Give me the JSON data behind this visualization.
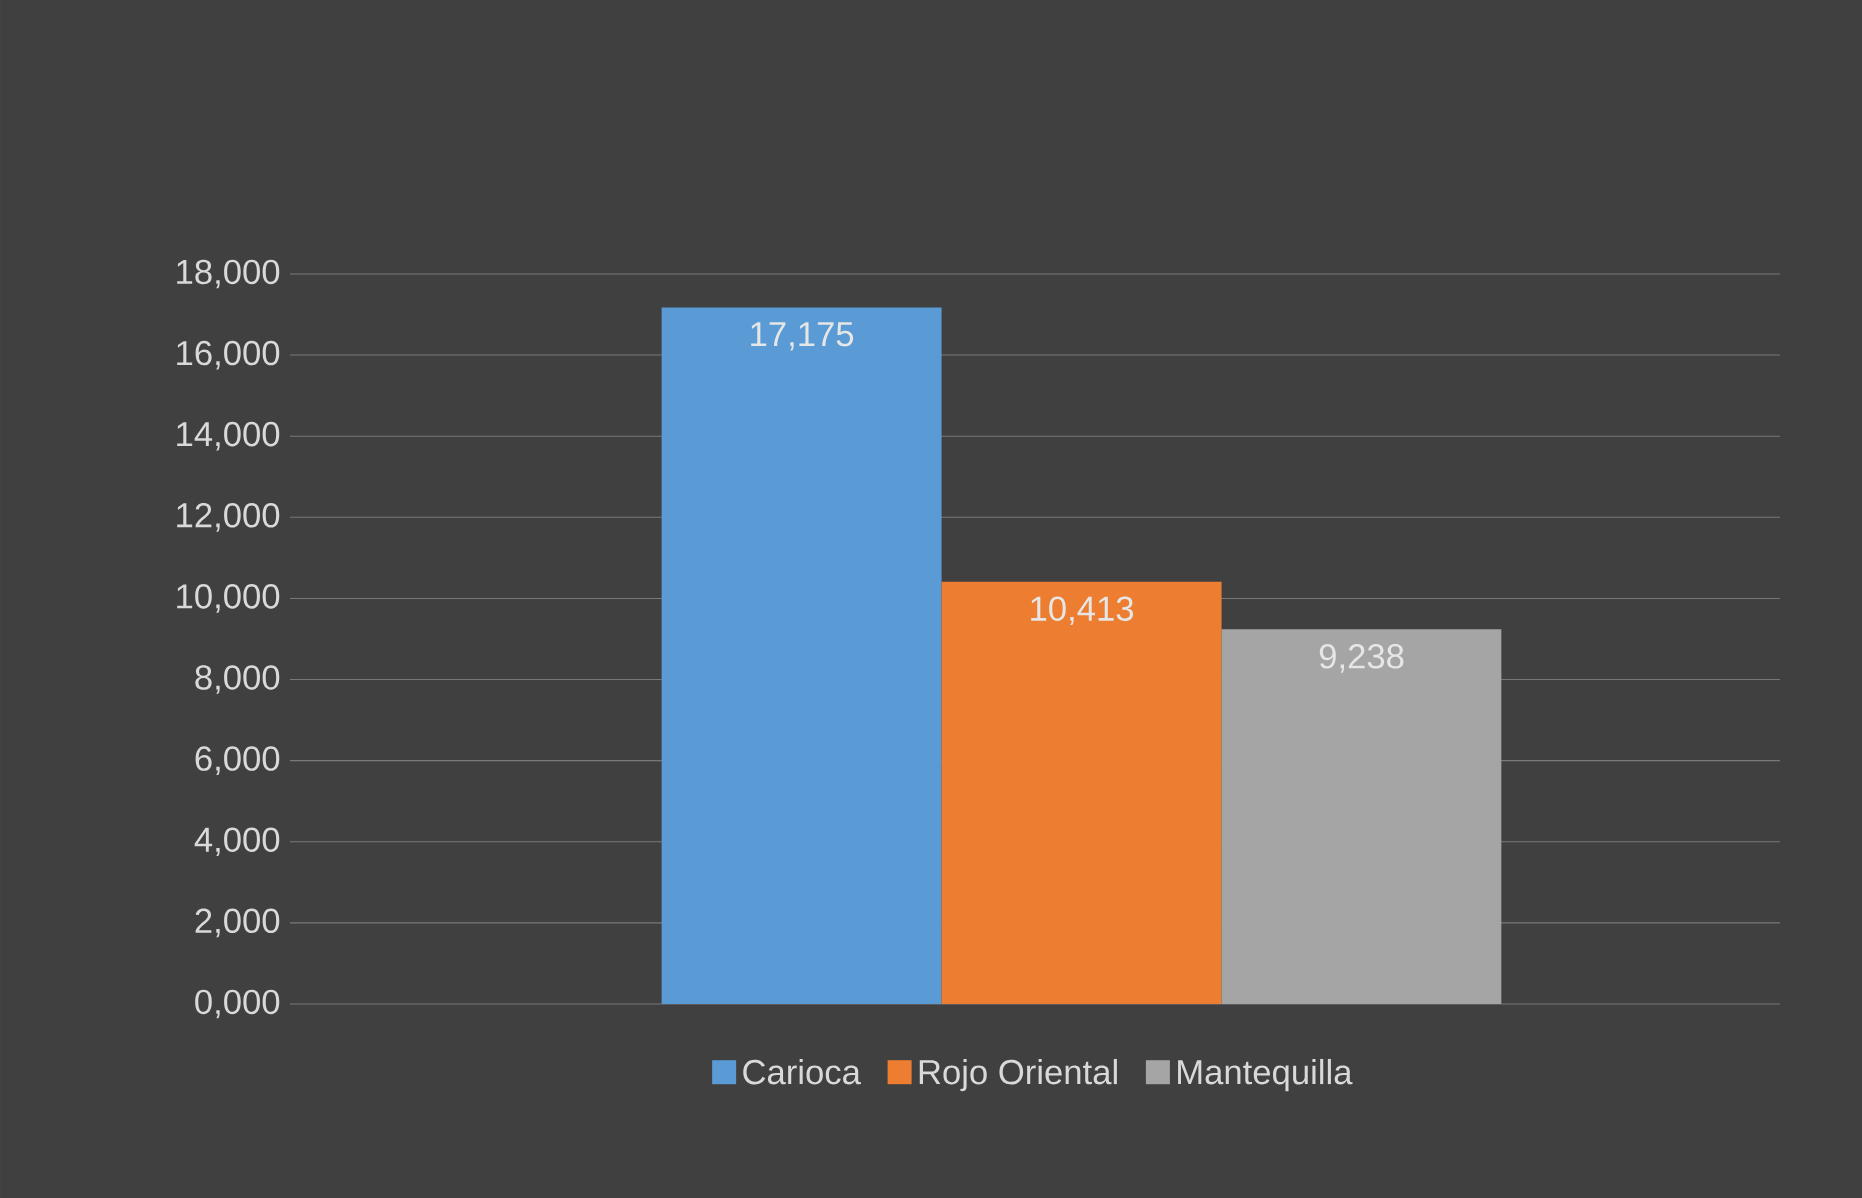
{
  "chart_data": {
    "type": "bar",
    "categories": [
      null
    ],
    "series": [
      {
        "name": "Carioca",
        "color": "#5b9bd5",
        "values": [
          17175
        ],
        "value_labels": [
          "17,175"
        ]
      },
      {
        "name": "Rojo Oriental",
        "color": "#ed7d31",
        "values": [
          10413
        ],
        "value_labels": [
          "10,413"
        ]
      },
      {
        "name": "Mantequilla",
        "color": "#a5a5a5",
        "values": [
          9238
        ],
        "value_labels": [
          "9,238"
        ]
      }
    ],
    "ylim": [
      0,
      18000
    ],
    "yticks": [
      {
        "value": 0,
        "label": "0,000"
      },
      {
        "value": 2000,
        "label": "2,000"
      },
      {
        "value": 4000,
        "label": "4,000"
      },
      {
        "value": 6000,
        "label": "6,000"
      },
      {
        "value": 8000,
        "label": "8,000"
      },
      {
        "value": 10000,
        "label": "10,000"
      },
      {
        "value": 12000,
        "label": "12,000"
      },
      {
        "value": 14000,
        "label": "14,000"
      },
      {
        "value": 16000,
        "label": "16,000"
      },
      {
        "value": 18000,
        "label": "18,000"
      }
    ],
    "grid": "y",
    "legend": "bottom"
  }
}
